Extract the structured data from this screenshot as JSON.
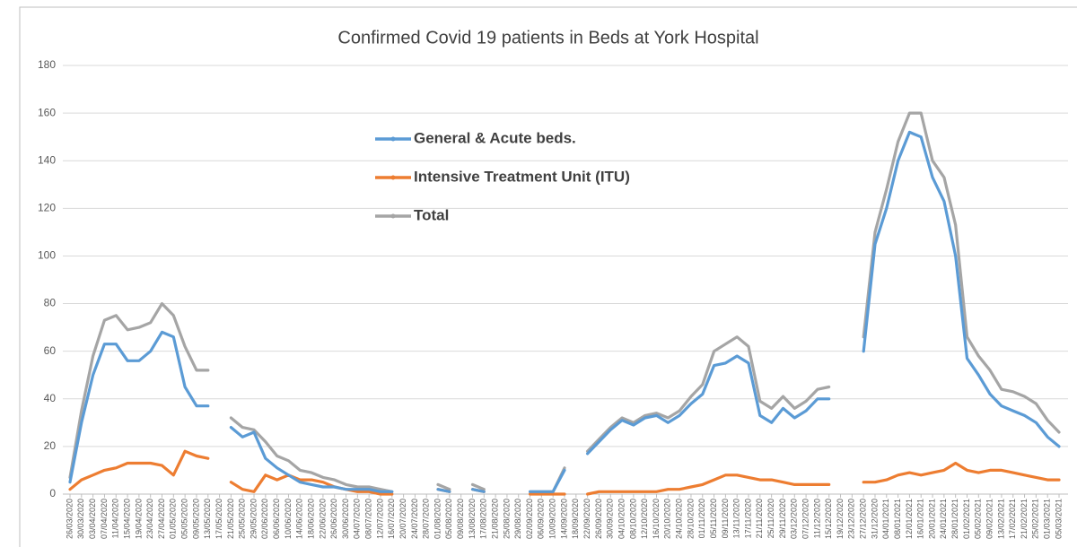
{
  "chart_data": {
    "type": "line",
    "title": "Confirmed Covid 19 patients in Beds at York Hospital",
    "categories": [
      "26/03/2020",
      "30/03/2020",
      "03/04/2020",
      "07/04/2020",
      "11/04/2020",
      "15/04/2020",
      "19/04/2020",
      "23/04/2020",
      "27/04/2020",
      "01/05/2020",
      "05/05/2020",
      "09/05/2020",
      "13/05/2020",
      "17/05/2020",
      "21/05/2020",
      "25/05/2020",
      "29/05/2020",
      "02/06/2020",
      "06/06/2020",
      "10/06/2020",
      "14/06/2020",
      "18/06/2020",
      "22/06/2020",
      "26/06/2020",
      "30/06/2020",
      "04/07/2020",
      "08/07/2020",
      "12/07/2020",
      "16/07/2020",
      "20/07/2020",
      "24/07/2020",
      "28/07/2020",
      "01/08/2020",
      "05/08/2020",
      "09/08/2020",
      "13/08/2020",
      "17/08/2020",
      "21/08/2020",
      "25/08/2020",
      "29/08/2020",
      "02/09/2020",
      "06/09/2020",
      "10/09/2020",
      "14/09/2020",
      "18/09/2020",
      "22/09/2020",
      "26/09/2020",
      "30/09/2020",
      "04/10/2020",
      "08/10/2020",
      "12/10/2020",
      "16/10/2020",
      "20/10/2020",
      "24/10/2020",
      "28/10/2020",
      "01/11/2020",
      "05/11/2020",
      "09/11/2020",
      "13/11/2020",
      "17/11/2020",
      "21/11/2020",
      "25/11/2020",
      "29/11/2020",
      "03/12/2020",
      "07/12/2020",
      "11/12/2020",
      "15/12/2020",
      "19/12/2020",
      "23/12/2020",
      "27/12/2020",
      "31/12/2020",
      "04/01/2021",
      "08/01/2021",
      "12/01/2021",
      "16/01/2021",
      "20/01/2021",
      "24/01/2021",
      "28/01/2021",
      "01/02/2021",
      "05/02/2021",
      "09/02/2021",
      "13/02/2021",
      "17/02/2021",
      "21/02/2021",
      "25/02/2021",
      "01/03/2021",
      "05/03/2021"
    ],
    "series": [
      {
        "name": "General & Acute beds.",
        "color": "#5b9bd5",
        "values": [
          5,
          30,
          50,
          63,
          63,
          56,
          56,
          60,
          68,
          66,
          45,
          37,
          37,
          null,
          28,
          24,
          26,
          15,
          11,
          8,
          5,
          4,
          3,
          3,
          2,
          2,
          2,
          1,
          1,
          null,
          1,
          null,
          2,
          1,
          null,
          2,
          1,
          null,
          1,
          null,
          1,
          1,
          1,
          10,
          null,
          17,
          22,
          27,
          31,
          29,
          32,
          33,
          30,
          33,
          38,
          42,
          54,
          55,
          58,
          55,
          33,
          30,
          36,
          32,
          35,
          40,
          40,
          null,
          null,
          60,
          105,
          120,
          140,
          152,
          150,
          133,
          123,
          100,
          57,
          50,
          42,
          37,
          35,
          33,
          30,
          24,
          20
        ]
      },
      {
        "name": "Intensive Treatment Unit (ITU)",
        "color": "#ed7d31",
        "values": [
          2,
          6,
          8,
          10,
          11,
          13,
          13,
          13,
          12,
          8,
          18,
          16,
          15,
          null,
          5,
          2,
          1,
          8,
          6,
          8,
          6,
          6,
          5,
          3,
          2,
          1,
          1,
          0,
          0,
          null,
          0,
          null,
          2,
          1,
          null,
          2,
          1,
          null,
          0,
          null,
          0,
          0,
          0,
          0,
          null,
          0,
          1,
          1,
          1,
          1,
          1,
          1,
          2,
          2,
          3,
          4,
          6,
          8,
          8,
          7,
          6,
          6,
          5,
          4,
          4,
          4,
          4,
          null,
          null,
          5,
          5,
          6,
          8,
          9,
          8,
          9,
          10,
          13,
          10,
          9,
          10,
          10,
          9,
          8,
          7,
          6,
          6
        ]
      },
      {
        "name": "Total",
        "color": "#a5a5a5",
        "values": [
          7,
          35,
          58,
          73,
          75,
          69,
          70,
          72,
          80,
          75,
          62,
          52,
          52,
          null,
          32,
          28,
          27,
          22,
          16,
          14,
          10,
          9,
          7,
          6,
          4,
          3,
          3,
          2,
          1,
          null,
          1,
          null,
          4,
          2,
          null,
          4,
          2,
          null,
          1,
          null,
          1,
          1,
          1,
          11,
          null,
          18,
          23,
          28,
          32,
          30,
          33,
          34,
          32,
          35,
          41,
          46,
          60,
          63,
          66,
          62,
          39,
          36,
          41,
          36,
          39,
          44,
          45,
          null,
          null,
          66,
          110,
          128,
          148,
          160,
          160,
          140,
          133,
          113,
          66,
          58,
          52,
          44,
          43,
          41,
          38,
          31,
          26
        ]
      }
    ],
    "ylim": [
      0,
      180
    ],
    "yticks": [
      0,
      20,
      40,
      60,
      80,
      100,
      120,
      140,
      160,
      180
    ],
    "grid": true
  }
}
